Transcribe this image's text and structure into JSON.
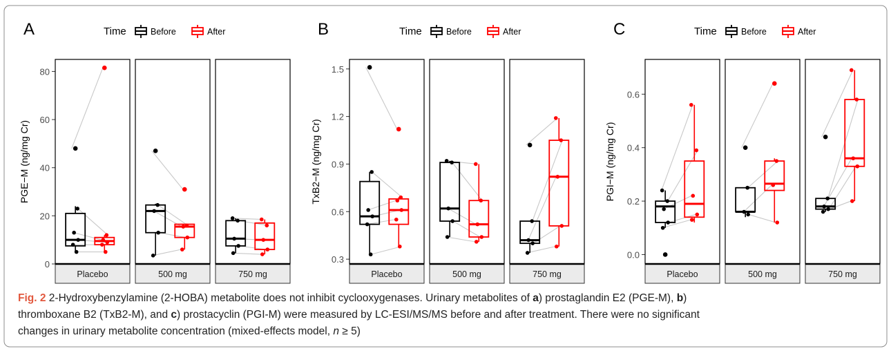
{
  "figure": {
    "caption": {
      "label": "Fig. 2",
      "title": "2-Hydroxybenzylamine (2-HOBA) metabolite does not inhibit cyclooxygenases.",
      "part1": "Urinary metabolites of ",
      "a": "a",
      "part2": ") prostaglandin E2 (PGE-M), ",
      "b": "b",
      "part3": ")",
      "line2a": "thromboxane B2 (TxB2-M), and ",
      "c": "c",
      "line2b": ") prostacyclin (PGI-M) were measured by LC-ESI/MS/MS before and after treatment. There were no significant",
      "line3a": "changes in urinary metabolite concentration (mixed-effects model, ",
      "n": "n",
      "line3b": " ≥ 5)"
    },
    "colors": {
      "before": "#000000",
      "after": "#ff0000",
      "connector": "#c8c8c8",
      "strip": "#ebebeb"
    }
  },
  "chart_data": [
    {
      "type": "box",
      "panel_label": "A",
      "legend": {
        "title": "Time",
        "entries": [
          "Before",
          "After"
        ],
        "position": "top"
      },
      "ylabel": "PGE−M (ng/mg Cr)",
      "ylim": [
        0,
        85
      ],
      "yticks": [
        0,
        20,
        40,
        60,
        80
      ],
      "facets": [
        "Placebo",
        "500 mg",
        "750 mg"
      ],
      "groups": [
        {
          "facet": "Placebo",
          "before": {
            "q1": 7.5,
            "median": 10,
            "q3": 21,
            "whisker_low": 5,
            "whisker_high": 24,
            "points": [
              48,
              23,
              13,
              10,
              8,
              5
            ],
            "outliers": [
              48
            ]
          },
          "after": {
            "q1": 8,
            "median": 9.5,
            "q3": 11,
            "whisker_low": 5,
            "whisker_high": 12,
            "points": [
              81.5,
              12,
              10,
              9,
              8,
              5
            ],
            "outliers": [
              81.5
            ]
          }
        },
        {
          "facet": "500 mg",
          "before": {
            "q1": 13,
            "median": 22,
            "q3": 24.5,
            "whisker_low": 3.5,
            "whisker_high": 25,
            "points": [
              47,
              24.5,
              22,
              13,
              3.5
            ],
            "outliers": [
              47
            ]
          },
          "after": {
            "q1": 11,
            "median": 15.5,
            "q3": 16.5,
            "whisker_low": 6,
            "whisker_high": 16.5,
            "points": [
              31,
              16,
              15.5,
              11,
              6
            ],
            "outliers": [
              31
            ]
          }
        },
        {
          "facet": "750 mg",
          "before": {
            "q1": 7.5,
            "median": 10.5,
            "q3": 18,
            "whisker_low": 4.5,
            "whisker_high": 19,
            "points": [
              19,
              18,
              10.5,
              7.5,
              4.5
            ],
            "outliers": []
          },
          "after": {
            "q1": 6,
            "median": 10,
            "q3": 17,
            "whisker_low": 4,
            "whisker_high": 18.5,
            "points": [
              18.5,
              16,
              10,
              6,
              4
            ],
            "outliers": []
          }
        }
      ]
    },
    {
      "type": "box",
      "panel_label": "B",
      "legend": {
        "title": "Time",
        "entries": [
          "Before",
          "After"
        ],
        "position": "top"
      },
      "ylabel": "TxB2−M (ng/mg Cr)",
      "ylim": [
        0.27,
        1.56
      ],
      "yticks": [
        0.3,
        0.6,
        0.9,
        1.2,
        1.5
      ],
      "facets": [
        "Placebo",
        "500 mg",
        "750 mg"
      ],
      "groups": [
        {
          "facet": "Placebo",
          "before": {
            "q1": 0.52,
            "median": 0.57,
            "q3": 0.79,
            "whisker_low": 0.33,
            "whisker_high": 0.85,
            "points": [
              1.51,
              0.85,
              0.61,
              0.57,
              0.52,
              0.33
            ],
            "outliers": [
              1.51
            ]
          },
          "after": {
            "q1": 0.52,
            "median": 0.61,
            "q3": 0.68,
            "whisker_low": 0.38,
            "whisker_high": 0.69,
            "points": [
              1.12,
              0.69,
              0.67,
              0.61,
              0.55,
              0.38
            ],
            "outliers": [
              1.12
            ]
          }
        },
        {
          "facet": "500 mg",
          "before": {
            "q1": 0.54,
            "median": 0.62,
            "q3": 0.91,
            "whisker_low": 0.44,
            "whisker_high": 0.92,
            "points": [
              0.92,
              0.91,
              0.62,
              0.54,
              0.44
            ],
            "outliers": []
          },
          "after": {
            "q1": 0.44,
            "median": 0.52,
            "q3": 0.67,
            "whisker_low": 0.41,
            "whisker_high": 0.9,
            "points": [
              0.9,
              0.67,
              0.52,
              0.44,
              0.41
            ],
            "outliers": []
          }
        },
        {
          "facet": "750 mg",
          "before": {
            "q1": 0.4,
            "median": 0.42,
            "q3": 0.54,
            "whisker_low": 0.34,
            "whisker_high": 0.54,
            "points": [
              1.02,
              0.54,
              0.42,
              0.4,
              0.34
            ],
            "outliers": [
              1.02
            ]
          },
          "after": {
            "q1": 0.51,
            "median": 0.82,
            "q3": 1.05,
            "whisker_low": 0.38,
            "whisker_high": 1.19,
            "points": [
              1.19,
              1.05,
              0.82,
              0.51,
              0.38
            ],
            "outliers": []
          }
        }
      ]
    },
    {
      "type": "box",
      "panel_label": "C",
      "legend": {
        "title": "Time",
        "entries": [
          "Before",
          "After"
        ],
        "position": "top"
      },
      "ylabel": "PGI−M (ng/mg Cr)",
      "ylim": [
        -0.035,
        0.73
      ],
      "yticks": [
        0.0,
        0.2,
        0.4,
        0.6
      ],
      "ytick_labels": [
        "0.0",
        "0.2",
        "0.4",
        "0.6"
      ],
      "facets": [
        "Placebo",
        "500 mg",
        "750 mg"
      ],
      "groups": [
        {
          "facet": "Placebo",
          "before": {
            "q1": 0.12,
            "median": 0.18,
            "q3": 0.2,
            "whisker_low": 0.1,
            "whisker_high": 0.24,
            "points": [
              0.24,
              0.2,
              0.17,
              0.12,
              0.1,
              0.0
            ],
            "outliers": [
              0.0
            ]
          },
          "after": {
            "q1": 0.14,
            "median": 0.19,
            "q3": 0.35,
            "whisker_low": 0.12,
            "whisker_high": 0.56,
            "points": [
              0.56,
              0.39,
              0.22,
              0.15,
              0.13
            ],
            "outliers": []
          }
        },
        {
          "facet": "500 mg",
          "before": {
            "q1": 0.16,
            "median": 0.16,
            "q3": 0.25,
            "whisker_low": 0.14,
            "whisker_high": 0.25,
            "points": [
              0.4,
              0.25,
              0.16,
              0.15
            ],
            "outliers": [
              0.4
            ]
          },
          "after": {
            "q1": 0.24,
            "median": 0.265,
            "q3": 0.35,
            "whisker_low": 0.12,
            "whisker_high": 0.36,
            "points": [
              0.64,
              0.35,
              0.26,
              0.12
            ],
            "outliers": [
              0.64
            ]
          }
        },
        {
          "facet": "750 mg",
          "before": {
            "q1": 0.17,
            "median": 0.18,
            "q3": 0.21,
            "whisker_low": 0.16,
            "whisker_high": 0.21,
            "points": [
              0.44,
              0.21,
              0.18,
              0.17,
              0.16
            ],
            "outliers": [
              0.44
            ]
          },
          "after": {
            "q1": 0.33,
            "median": 0.36,
            "q3": 0.58,
            "whisker_low": 0.2,
            "whisker_high": 0.69,
            "points": [
              0.69,
              0.58,
              0.36,
              0.33,
              0.2
            ],
            "outliers": []
          }
        }
      ]
    }
  ]
}
